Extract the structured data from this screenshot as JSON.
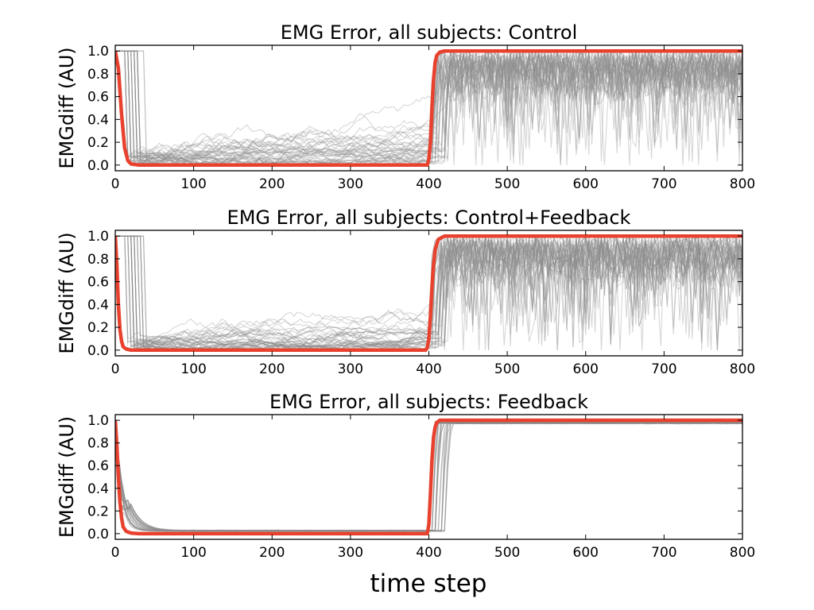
{
  "figure": {
    "xlabel": "time step",
    "colors": {
      "mean_trace": "#e8412e",
      "subject_trace": "#8c8c8c",
      "axes": "#000000",
      "background": "#ffffff"
    }
  },
  "chart_data": [
    {
      "type": "line",
      "title": "EMG Error, all subjects: Control",
      "ylabel": "EMGdiff (AU)",
      "xlabel": "",
      "xlim": [
        0,
        800
      ],
      "ylim": [
        -0.05,
        1.05
      ],
      "xticks": [
        0,
        100,
        200,
        300,
        400,
        500,
        600,
        700,
        800
      ],
      "xtick_labels": [
        "0",
        "100",
        "200",
        "300",
        "400",
        "500",
        "600",
        "700",
        "800"
      ],
      "yticks": [
        0.0,
        0.2,
        0.4,
        0.6,
        0.8,
        1.0
      ],
      "ytick_labels": [
        "0.0",
        "0.2",
        "0.4",
        "0.6",
        "0.8",
        "1.0"
      ],
      "grid": false,
      "series": [
        {
          "role": "mean",
          "x": [
            0,
            4,
            8,
            12,
            16,
            20,
            30,
            50,
            100,
            200,
            300,
            398,
            400,
            402,
            404,
            406,
            408,
            410,
            414,
            420,
            450,
            500,
            600,
            700,
            800
          ],
          "y": [
            1.0,
            0.85,
            0.45,
            0.15,
            0.04,
            0.01,
            0.0,
            0.0,
            0.0,
            0.0,
            0.0,
            0.0,
            0.05,
            0.2,
            0.5,
            0.75,
            0.9,
            0.96,
            0.99,
            1.0,
            1.0,
            1.0,
            1.0,
            1.0,
            1.0
          ]
        },
        {
          "role": "subjects",
          "description_count": 40,
          "x": [
            0,
            800
          ],
          "y_range": [
            0.0,
            1.0
          ]
        }
      ]
    },
    {
      "type": "line",
      "title": "EMG Error, all subjects: Control+Feedback",
      "ylabel": "EMGdiff (AU)",
      "xlabel": "",
      "xlim": [
        0,
        800
      ],
      "ylim": [
        -0.05,
        1.05
      ],
      "xticks": [
        0,
        100,
        200,
        300,
        400,
        500,
        600,
        700,
        800
      ],
      "xtick_labels": [
        "0",
        "100",
        "200",
        "300",
        "400",
        "500",
        "600",
        "700",
        "800"
      ],
      "yticks": [
        0.0,
        0.2,
        0.4,
        0.6,
        0.8,
        1.0
      ],
      "ytick_labels": [
        "0.0",
        "0.2",
        "0.4",
        "0.6",
        "0.8",
        "1.0"
      ],
      "grid": false,
      "series": [
        {
          "role": "mean",
          "x": [
            0,
            2,
            4,
            6,
            8,
            10,
            14,
            20,
            30,
            100,
            200,
            300,
            396,
            398,
            400,
            402,
            404,
            406,
            408,
            412,
            420,
            450,
            500,
            600,
            700,
            800
          ],
          "y": [
            1.0,
            0.75,
            0.4,
            0.18,
            0.08,
            0.03,
            0.01,
            0.0,
            0.0,
            0.0,
            0.0,
            0.0,
            0.0,
            0.02,
            0.1,
            0.3,
            0.55,
            0.75,
            0.88,
            0.97,
            1.0,
            1.0,
            1.0,
            1.0,
            1.0,
            1.0
          ]
        },
        {
          "role": "subjects",
          "description_count": 40,
          "x": [
            0,
            800
          ],
          "y_range": [
            0.0,
            1.0
          ]
        }
      ]
    },
    {
      "type": "line",
      "title": "EMG Error, all subjects: Feedback",
      "ylabel": "EMGdiff (AU)",
      "xlabel": "",
      "xlim": [
        0,
        800
      ],
      "ylim": [
        -0.05,
        1.05
      ],
      "xticks": [
        0,
        100,
        200,
        300,
        400,
        500,
        600,
        700,
        800
      ],
      "xtick_labels": [
        "0",
        "100",
        "200",
        "300",
        "400",
        "500",
        "600",
        "700",
        "800"
      ],
      "yticks": [
        0.0,
        0.2,
        0.4,
        0.6,
        0.8,
        1.0
      ],
      "ytick_labels": [
        "0.0",
        "0.2",
        "0.4",
        "0.6",
        "0.8",
        "1.0"
      ],
      "grid": false,
      "series": [
        {
          "role": "mean",
          "x": [
            0,
            2,
            4,
            6,
            8,
            10,
            14,
            20,
            30,
            100,
            200,
            300,
            398,
            400,
            402,
            404,
            406,
            408,
            410,
            414,
            420,
            450,
            500,
            600,
            700,
            800
          ],
          "y": [
            1.0,
            0.78,
            0.5,
            0.28,
            0.14,
            0.06,
            0.02,
            0.005,
            0.0,
            0.0,
            0.0,
            0.0,
            0.0,
            0.08,
            0.35,
            0.65,
            0.85,
            0.94,
            0.98,
            1.0,
            1.0,
            1.0,
            1.0,
            1.0,
            1.0,
            1.0
          ]
        },
        {
          "role": "subjects",
          "description_count": 40,
          "x": [
            0,
            800
          ],
          "y_range": [
            0.02,
            0.98
          ]
        }
      ]
    }
  ]
}
